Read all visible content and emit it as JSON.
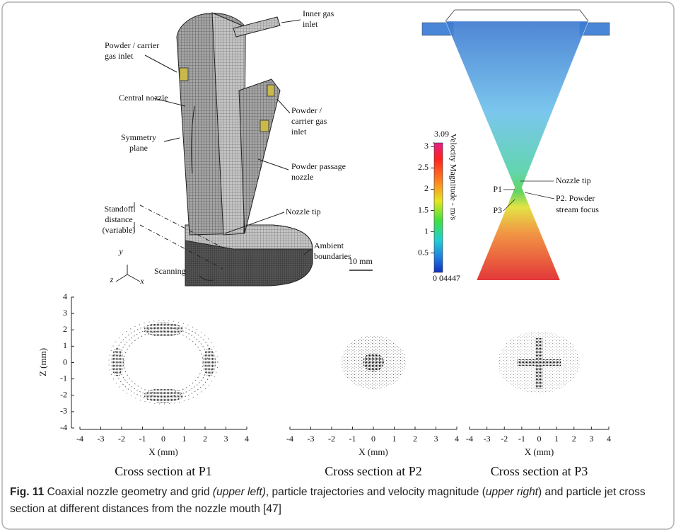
{
  "diagram": {
    "labels": [
      {
        "lines": [
          "Inner gas",
          "inlet"
        ]
      },
      {
        "lines": [
          "Powder / carrier",
          "gas inlet"
        ]
      },
      {
        "lines": [
          "Central nozzle"
        ]
      },
      {
        "lines": [
          "Symmetry",
          "plane"
        ]
      },
      {
        "lines": [
          "Powder /",
          "carrier gas",
          "inlet"
        ]
      },
      {
        "lines": [
          "Powder passage",
          "nozzle"
        ]
      },
      {
        "lines": [
          "Standoff",
          "distance",
          "(variable)"
        ]
      },
      {
        "lines": [
          "Nozzle tip"
        ]
      },
      {
        "lines": [
          "Ambient",
          "boundaries"
        ]
      },
      {
        "lines": [
          "Scanning"
        ]
      }
    ],
    "axes": [
      "y",
      "z",
      "x"
    ],
    "scale_bar": "10 mm"
  },
  "velocity_plot": {
    "labels": [
      {
        "lines": [
          "Nozzle tip"
        ]
      },
      {
        "lines": [
          "P1"
        ]
      },
      {
        "lines": [
          "P2. Powder",
          "stream focus"
        ]
      },
      {
        "lines": [
          "P3"
        ]
      }
    ],
    "colorbar": {
      "title": "Velocity Magnitude - m/s",
      "range": [
        {
          "value": 0.04447,
          "label": "0 04447"
        },
        3.09
      ],
      "ticks": [
        0.5,
        1,
        1.5,
        2,
        2.5,
        3
      ]
    }
  },
  "cross_sections": {
    "xlabel": "X (mm)",
    "ylabel": "Z (mm)",
    "xlim": [
      -4,
      4
    ],
    "ylim": [
      -4,
      4
    ],
    "xticks": [
      -4,
      -3,
      -2,
      -1,
      0,
      1,
      2,
      3,
      4
    ],
    "yticks": [
      -4,
      -3,
      -2,
      -1,
      0,
      1,
      2,
      3,
      4
    ],
    "panels": [
      {
        "title": "Cross section at P1"
      },
      {
        "title": "Cross section at P2"
      },
      {
        "title": "Cross section at P3"
      }
    ]
  },
  "caption": {
    "label": "Fig. 11",
    "parts": [
      "Coaxial nozzle geometry and grid ",
      "(upper left)",
      ", particle trajectories and velocity magnitude (",
      "upper right",
      ") and particle jet cross section at different distances from the nozzle mouth [47]"
    ]
  }
}
